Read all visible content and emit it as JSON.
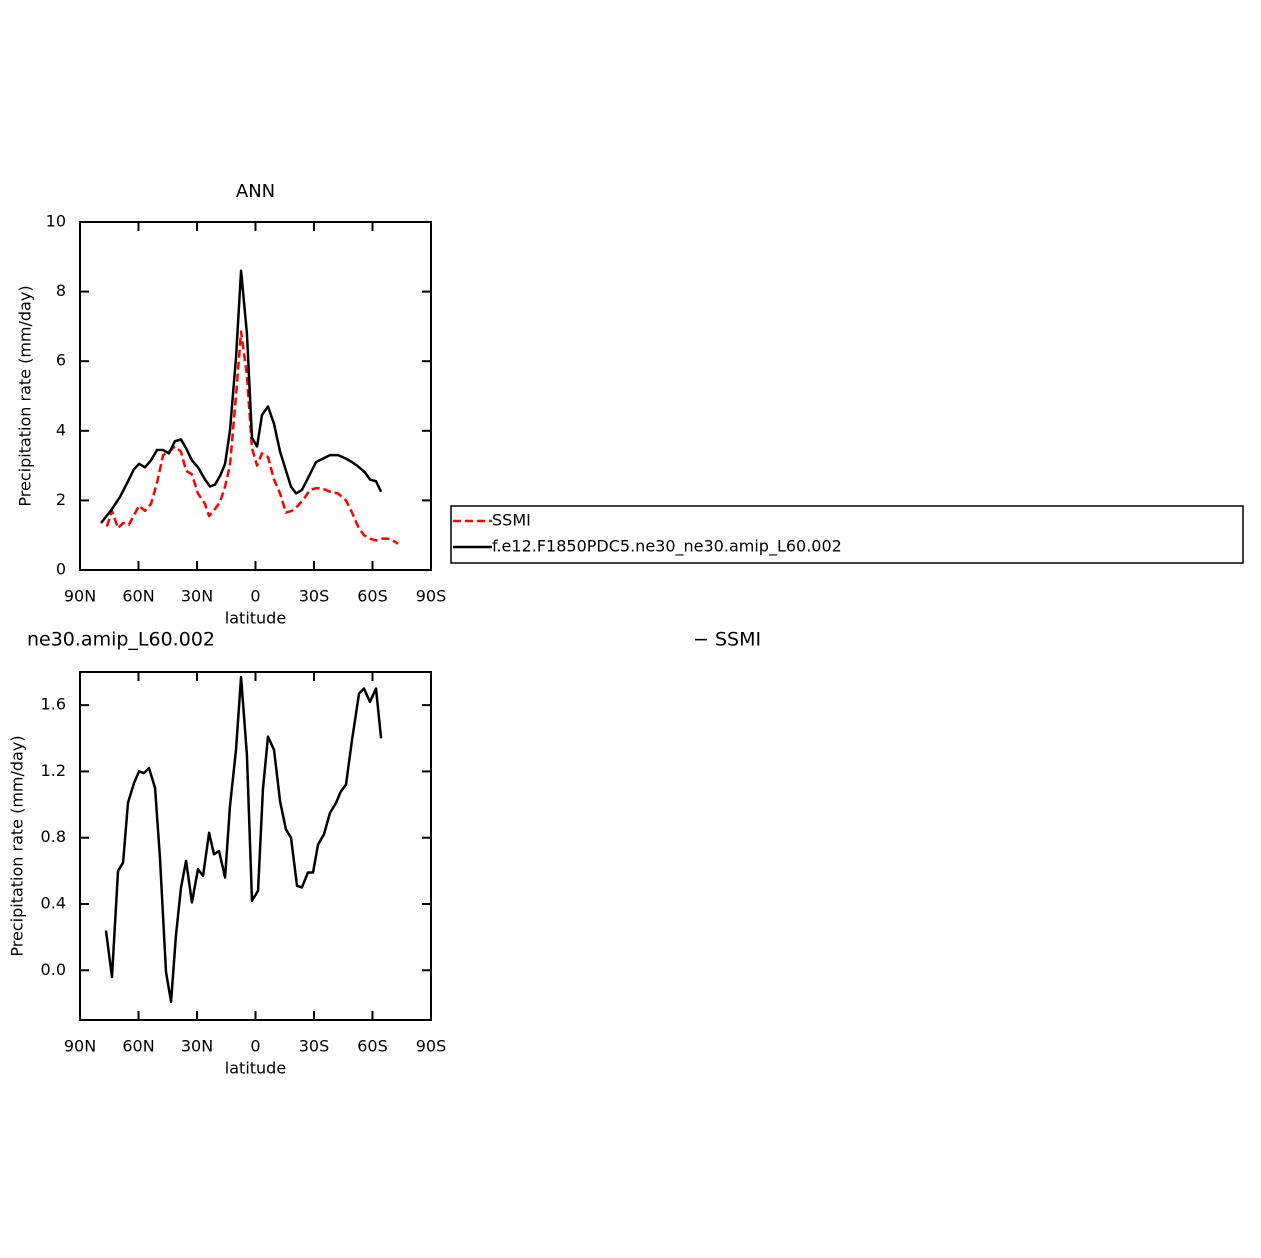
{
  "chart_data": [
    {
      "type": "line",
      "title": "ANN",
      "xlabel": "latitude",
      "ylabel": "Precipitation rate (mm/day)",
      "xlim": [
        90,
        -90
      ],
      "ylim": [
        0,
        10
      ],
      "xticks": [
        {
          "value": 90,
          "label": "90N"
        },
        {
          "value": 60,
          "label": "60N"
        },
        {
          "value": 30,
          "label": "30N"
        },
        0,
        {
          "value": -30,
          "label": "30S"
        },
        {
          "value": -60,
          "label": "60S"
        },
        {
          "value": -90,
          "label": "90S"
        }
      ],
      "yticks": [
        0,
        2,
        4,
        6,
        8,
        10
      ],
      "legend": "right",
      "series": [
        {
          "name": "SSMI",
          "color": "#ff0000",
          "linestyle": "dashed",
          "x": [
            76.2,
            73.6,
            70.5,
            67.9,
            64.9,
            59.7,
            56.7,
            53.6,
            50.5,
            47.4,
            44.4,
            41.3,
            38.2,
            35.6,
            32.6,
            29.5,
            25.9,
            23.8,
            20.8,
            18.2,
            15.6,
            13.1,
            10.0,
            7.4,
            4.4,
            1.8,
            -0.8,
            -3.3,
            -6.4,
            -9.5,
            -12.6,
            -15.6,
            -18.7,
            -21.8,
            -24.9,
            -27.9,
            -31.0,
            -34.1,
            -38.2,
            -42.3,
            -46.4,
            -49.5,
            -52.6,
            -55.6,
            -58.7,
            -61.8,
            -64.9,
            -67.9,
            -70.5,
            -73.1
          ],
          "values": [
            1.25,
            1.7,
            1.2,
            1.35,
            1.3,
            1.85,
            1.7,
            1.9,
            2.5,
            3.3,
            3.4,
            3.55,
            3.4,
            2.85,
            2.75,
            2.2,
            1.9,
            1.55,
            1.75,
            1.95,
            2.4,
            3.0,
            5.0,
            6.85,
            5.6,
            3.5,
            3.0,
            3.35,
            3.25,
            2.6,
            2.2,
            1.65,
            1.7,
            1.85,
            2.05,
            2.3,
            2.35,
            2.35,
            2.25,
            2.2,
            2.0,
            1.65,
            1.25,
            1.0,
            0.9,
            0.85,
            0.9,
            0.9,
            0.85,
            0.75
          ]
        },
        {
          "name": "f.e12.F1850PDC5.ne30_ne30.amip_L60.002",
          "color": "#000000",
          "linestyle": "solid",
          "x": [
            79.2,
            73.6,
            69.5,
            65.4,
            62.3,
            59.7,
            56.7,
            53.6,
            50.5,
            47.4,
            44.4,
            41.3,
            38.2,
            35.6,
            32.6,
            29.5,
            25.9,
            23.3,
            20.8,
            18.2,
            15.6,
            13.1,
            10.0,
            7.4,
            4.4,
            1.8,
            -0.8,
            -3.3,
            -6.4,
            -9.5,
            -12.6,
            -16.2,
            -18.2,
            -20.8,
            -23.8,
            -27.9,
            -31.0,
            -34.6,
            -38.2,
            -42.3,
            -46.4,
            -49.5,
            -52.1,
            -56.2,
            -58.7,
            -61.8,
            -64.4
          ],
          "values": [
            1.35,
            1.75,
            2.1,
            2.55,
            2.9,
            3.05,
            2.95,
            3.15,
            3.45,
            3.45,
            3.35,
            3.7,
            3.75,
            3.5,
            3.15,
            2.95,
            2.6,
            2.4,
            2.45,
            2.7,
            3.05,
            4.0,
            6.1,
            8.6,
            6.8,
            3.8,
            3.55,
            4.45,
            4.7,
            4.2,
            3.4,
            2.75,
            2.4,
            2.2,
            2.3,
            2.75,
            3.1,
            3.2,
            3.3,
            3.3,
            3.2,
            3.1,
            3.0,
            2.8,
            2.6,
            2.55,
            2.25
          ]
        }
      ]
    },
    {
      "type": "line",
      "title_left": "ne30.amip_L60.002",
      "title_right": "− SSMI",
      "xlabel": "latitude",
      "ylabel": "Precipitation rate (mm/day)",
      "xlim": [
        90,
        -90
      ],
      "ylim": [
        -0.3,
        1.8
      ],
      "xticks": [
        {
          "value": 90,
          "label": "90N"
        },
        {
          "value": 60,
          "label": "60N"
        },
        {
          "value": 30,
          "label": "30N"
        },
        0,
        {
          "value": -30,
          "label": "30S"
        },
        {
          "value": -60,
          "label": "60S"
        },
        {
          "value": -90,
          "label": "90S"
        }
      ],
      "yticks": [
        {
          "value": 0,
          "label": "0.0"
        },
        0.4,
        0.8,
        1.2,
        1.6
      ],
      "series": [
        {
          "color": "#000000",
          "linestyle": "solid",
          "x": [
            76.7,
            73.6,
            70.5,
            67.9,
            65.4,
            62.3,
            59.7,
            57.2,
            54.6,
            51.5,
            49.0,
            45.9,
            43.3,
            40.8,
            38.2,
            35.6,
            32.6,
            29.5,
            26.9,
            23.8,
            21.3,
            18.7,
            15.6,
            13.1,
            10.0,
            7.4,
            4.4,
            1.8,
            -1.3,
            -3.8,
            -6.4,
            -9.5,
            -12.6,
            -15.6,
            -18.2,
            -21.3,
            -23.8,
            -26.9,
            -29.5,
            -32.1,
            -35.1,
            -38.2,
            -41.3,
            -43.8,
            -46.4,
            -49.5,
            -53.1,
            -55.6,
            -58.7,
            -61.8,
            -64.4
          ],
          "values": [
            0.24,
            -0.04,
            0.6,
            0.65,
            1.01,
            1.13,
            1.2,
            1.19,
            1.22,
            1.1,
            0.68,
            -0.01,
            -0.19,
            0.21,
            0.5,
            0.66,
            0.41,
            0.61,
            0.57,
            0.83,
            0.7,
            0.72,
            0.56,
            0.99,
            1.33,
            1.77,
            1.3,
            0.42,
            0.48,
            1.09,
            1.41,
            1.33,
            1.02,
            0.85,
            0.8,
            0.51,
            0.5,
            0.59,
            0.59,
            0.76,
            0.82,
            0.95,
            1.01,
            1.08,
            1.12,
            1.39,
            1.67,
            1.7,
            1.62,
            1.7,
            1.4
          ]
        }
      ]
    }
  ]
}
